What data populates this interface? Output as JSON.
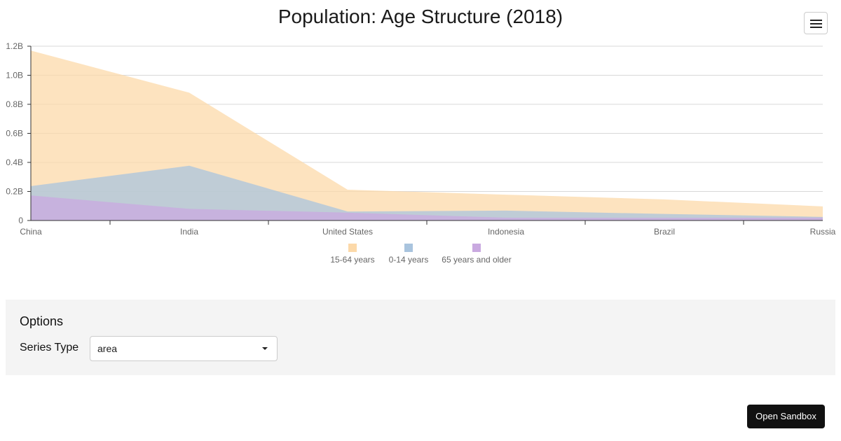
{
  "chart_data": {
    "type": "area",
    "title": "Population: Age Structure (2018)",
    "categories": [
      "China",
      "India",
      "United States",
      "Indonesia",
      "Brazil",
      "Russia"
    ],
    "series": [
      {
        "name": "15-64 years",
        "values": [
          1170000000,
          880000000,
          212000000,
          178000000,
          145000000,
          97000000
        ],
        "color": "#fcd9a9"
      },
      {
        "name": "0-14 years",
        "values": [
          237000000,
          377000000,
          62000000,
          68000000,
          45000000,
          25000000
        ],
        "color": "#a9c4de"
      },
      {
        "name": "65 years and older",
        "values": [
          172000000,
          80000000,
          54000000,
          19000000,
          18000000,
          20000000
        ],
        "color": "#c9a9e0"
      }
    ],
    "y_ticks": [
      "0",
      "0.2B",
      "0.4B",
      "0.6B",
      "0.8B",
      "1.0B",
      "1.2B"
    ],
    "ylim": [
      0,
      1200000000
    ],
    "grid": true,
    "legend_position": "bottom-center"
  },
  "menu": {
    "icon": "hamburger-menu-icon"
  },
  "options": {
    "title": "Options",
    "series_type_label": "Series Type",
    "series_type_value": "area"
  },
  "sandbox_button_label": "Open Sandbox"
}
